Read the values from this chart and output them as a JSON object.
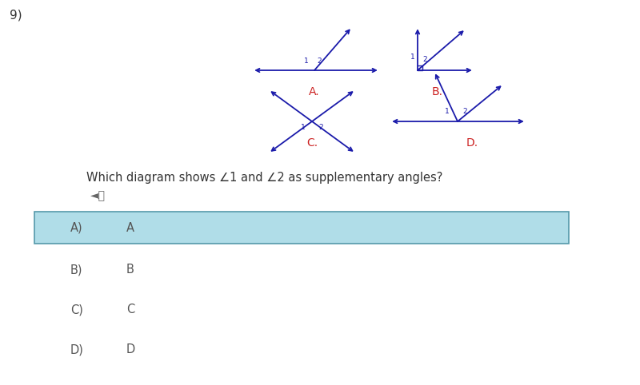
{
  "bg_color": "#ffffff",
  "diagram_color": "#1a1aaa",
  "label_color": "#cc2222",
  "question_number": "9)",
  "question_text": "Which diagram shows ∠1 and ∠2 as supplementary angles?",
  "answer_options": [
    "A)",
    "B)",
    "C)",
    "D)"
  ],
  "answer_labels": [
    "A",
    "B",
    "C",
    "D"
  ],
  "selected_index": 0,
  "selected_bg": "#b0dde8",
  "selected_border": "#5599aa",
  "fig_width": 8.0,
  "fig_height": 4.82,
  "dpi": 100
}
